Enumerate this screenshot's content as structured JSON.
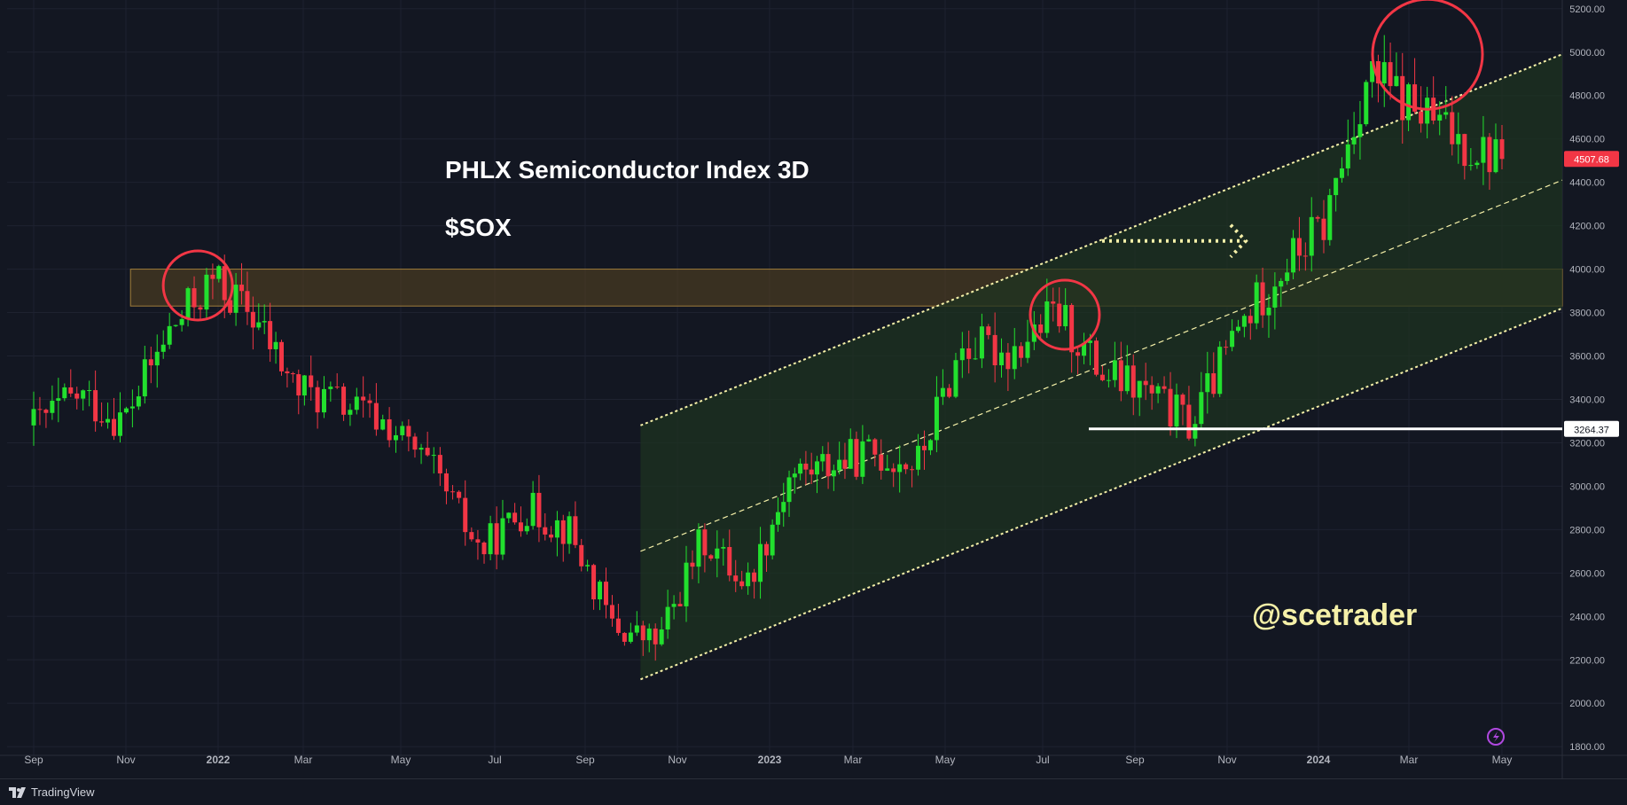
{
  "colors": {
    "background": "#131722",
    "grid": "#1e2230",
    "axis_text": "#b2b5be",
    "candle_up": "#22e02e",
    "candle_down": "#f23645",
    "channel_line": "#f5f0a8",
    "channel_fill": "#1d3320",
    "zone_fill": "#5a4520",
    "zone_border": "#a07d3a",
    "circle": "#f23645",
    "support_line": "#ffffff",
    "price_badge": "#f23645",
    "watermark": "#f5f0a8"
  },
  "annotations": {
    "title": "PHLX Semiconductor Index 3D",
    "ticker": "$SOX",
    "watermark": "@scetrader"
  },
  "footer": {
    "brand": "TradingView"
  },
  "chart_data": {
    "type": "candlestick",
    "ylim": [
      1760,
      5240
    ],
    "y_ticks": [
      1800,
      2000,
      2200,
      2400,
      2600,
      2800,
      3000,
      3200,
      3400,
      3600,
      3800,
      4000,
      4200,
      4400,
      4600,
      4800,
      5000,
      5200
    ],
    "x_ticks": [
      "Sep",
      "Nov",
      "2022",
      "Mar",
      "May",
      "Jul",
      "Sep",
      "Nov",
      "2023",
      "Mar",
      "May",
      "Jul",
      "Sep",
      "Nov",
      "2024",
      "Mar",
      "May"
    ],
    "x_tick_bold": [
      "2022",
      "2023",
      "2024"
    ],
    "last_price_label": "4507.68",
    "last_price": 4507.68,
    "support_price_label": "3264.37",
    "support_price": 3264.37,
    "price_path": [
      [
        "Sep",
        3280
      ],
      [
        "Sep",
        3420
      ],
      [
        "Nov",
        3300
      ],
      [
        "Nov",
        3700
      ],
      [
        "2022",
        3950
      ],
      [
        "2022",
        3780
      ],
      [
        "Mar",
        3450
      ],
      [
        "Mar",
        3380
      ],
      [
        "May",
        3280
      ],
      [
        "May",
        3050
      ],
      [
        "Jul",
        2700
      ],
      [
        "Jul",
        2900
      ],
      [
        "Sep",
        2800
      ],
      [
        "Sep",
        2350
      ],
      [
        "Nov",
        2280
      ],
      [
        "Nov",
        2760
      ],
      [
        "2023",
        2550
      ],
      [
        "2023",
        3050
      ],
      [
        "Mar",
        3100
      ],
      [
        "Mar",
        3150
      ],
      [
        "May",
        3100
      ],
      [
        "May",
        3650
      ],
      [
        "Jul",
        3620
      ],
      [
        "Jul",
        3800
      ],
      [
        "Sep",
        3520
      ],
      [
        "Sep",
        3430
      ],
      [
        "Nov",
        3280
      ],
      [
        "Nov",
        3700
      ],
      [
        "2024",
        4000
      ],
      [
        "2024",
        4200
      ],
      [
        "Mar",
        4900
      ],
      [
        "Mar",
        4750
      ],
      [
        "May",
        4600
      ],
      [
        "May",
        4507.68
      ]
    ],
    "channel": {
      "start_label": "Oct",
      "end_label": "May",
      "lower_start": 2110,
      "lower_end": 3820,
      "mid_start": 2700,
      "mid_end": 4410,
      "upper_start": 3280,
      "upper_end": 4990
    },
    "resistance_zone": {
      "low": 3830,
      "high": 4000
    },
    "highlight_circles": [
      "2022",
      "Jul",
      "Mar"
    ]
  }
}
